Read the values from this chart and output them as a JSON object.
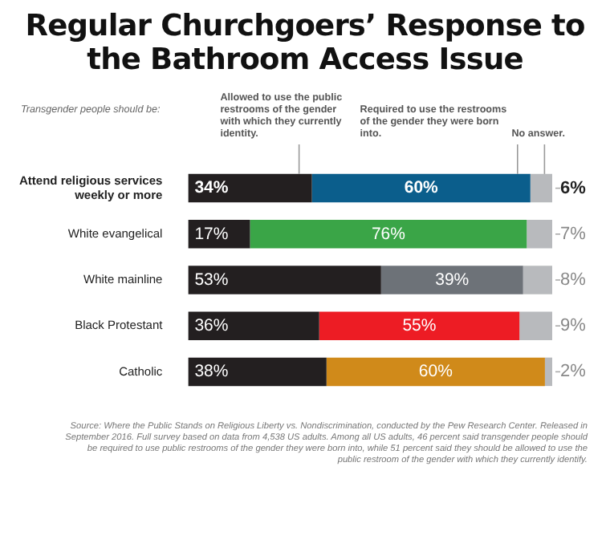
{
  "chart_data": {
    "type": "bar",
    "orientation": "horizontal",
    "stacked": true,
    "title": "Regular Churchgoers’ Response to the Bathroom Access Issue",
    "legend_title": "Transgender people should be:",
    "legend": "top",
    "categories": [
      "Attend religious services weekly or more",
      "White evangelical",
      "White mainline",
      "Black Protestant",
      "Catholic"
    ],
    "series": [
      {
        "name": "Allowed to use the public restrooms of the gender with which they currently identity.",
        "color": "#231f20",
        "values": [
          34,
          17,
          53,
          36,
          38
        ],
        "value_labels": [
          "34%",
          "17%",
          "53%",
          "36%",
          "38%"
        ]
      },
      {
        "name": "Required to use the restrooms of the gender they were born into.",
        "colors": [
          "#0b5e8c",
          "#3aa547",
          "#6d7278",
          "#ed1c24",
          "#d08a1a"
        ],
        "values": [
          60,
          76,
          39,
          55,
          60
        ],
        "value_labels": [
          "60%",
          "76%",
          "39%",
          "55%",
          "60%"
        ]
      },
      {
        "name": "No answer.",
        "color": "#b8babd",
        "values": [
          6,
          7,
          8,
          9,
          2
        ],
        "value_labels": [
          "6%",
          "7%",
          "8%",
          "9%",
          "2%"
        ]
      }
    ],
    "annotations": [
      "Source: Where the Public Stands on Religious Liberty vs. Nondiscrimination, conducted by the Pew Research Center. Released in September 2016. Full survey based on data from 4,538 US adults. Among all US adults, 46 percent said transgender people should be required to use public restrooms of the gender they were born into, while 51 percent said they should be allowed to use the public restroom of the gender with which they currently identify."
    ]
  }
}
